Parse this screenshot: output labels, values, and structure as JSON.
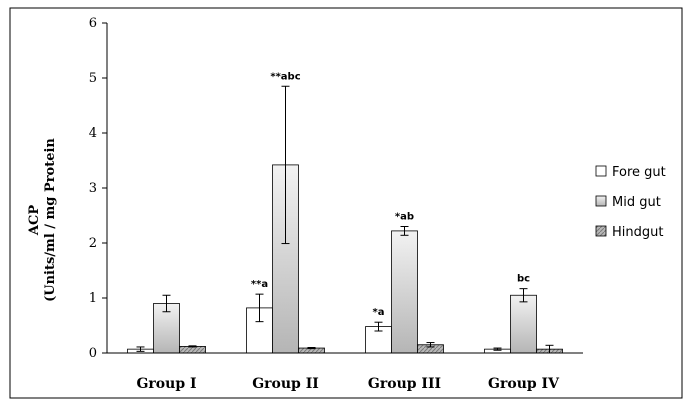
{
  "chart_data": {
    "type": "bar",
    "ylabel_line1": "ACP",
    "ylabel_line2": "(Units/ml / mg Protein",
    "ylim": [
      0,
      6
    ],
    "yticks": [
      "0",
      "1",
      "2",
      "3",
      "4",
      "5",
      "6"
    ],
    "categories": [
      "Group I",
      "Group II",
      "Group III",
      "Group IV"
    ],
    "legend_position": "right",
    "series": [
      {
        "name": "Fore gut",
        "color": "#ffffff",
        "values": [
          0.07,
          0.82,
          0.48,
          0.07
        ],
        "errors": [
          0.04,
          0.25,
          0.08,
          0.02
        ],
        "annotations": [
          "",
          "**a",
          "*a",
          ""
        ]
      },
      {
        "name": "Mid gut",
        "color": "#c8c8c8",
        "values": [
          0.9,
          3.42,
          2.22,
          1.05
        ],
        "errors": [
          0.15,
          1.43,
          0.08,
          0.12
        ],
        "annotations": [
          "",
          "**abc",
          "*ab",
          "bc"
        ]
      },
      {
        "name": "Hindgut",
        "color": "#a0a0a0",
        "values": [
          0.12,
          0.09,
          0.15,
          0.07
        ],
        "errors": [
          0.01,
          0.01,
          0.04,
          0.07
        ],
        "annotations": [
          "",
          "",
          "",
          ""
        ]
      }
    ]
  }
}
